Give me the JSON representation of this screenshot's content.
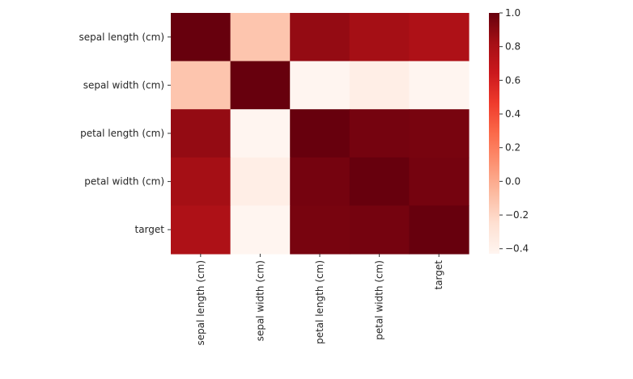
{
  "chart_data": {
    "type": "heatmap",
    "title": "",
    "xlabel": "",
    "ylabel": "",
    "rows": [
      "sepal length (cm)",
      "sepal width (cm)",
      "petal length (cm)",
      "petal width (cm)",
      "target"
    ],
    "cols": [
      "sepal length (cm)",
      "sepal width (cm)",
      "petal length (cm)",
      "petal width (cm)",
      "target"
    ],
    "values": [
      [
        1.0,
        -0.12,
        0.87,
        0.82,
        0.78
      ],
      [
        -0.12,
        1.0,
        -0.43,
        -0.37,
        -0.43
      ],
      [
        0.87,
        -0.43,
        1.0,
        0.96,
        0.95
      ],
      [
        0.82,
        -0.37,
        0.96,
        1.0,
        0.96
      ],
      [
        0.78,
        -0.43,
        0.95,
        0.96,
        1.0
      ]
    ],
    "colormap": "Reds",
    "vmin": -0.43,
    "vmax": 1.0,
    "colorbar": {
      "ticks": [
        -0.4,
        -0.2,
        0.0,
        0.2,
        0.4,
        0.6,
        0.8,
        1.0
      ],
      "tick_labels": [
        "−0.4",
        "−0.2",
        "0.0",
        "0.2",
        "0.4",
        "0.6",
        "0.8",
        "1.0"
      ]
    },
    "colors": [
      "#fff5f0",
      "#fee0d2",
      "#fcbba1",
      "#fc9272",
      "#fb6a4a",
      "#ef3b2c",
      "#cb181d",
      "#a50f15",
      "#67000d"
    ]
  }
}
